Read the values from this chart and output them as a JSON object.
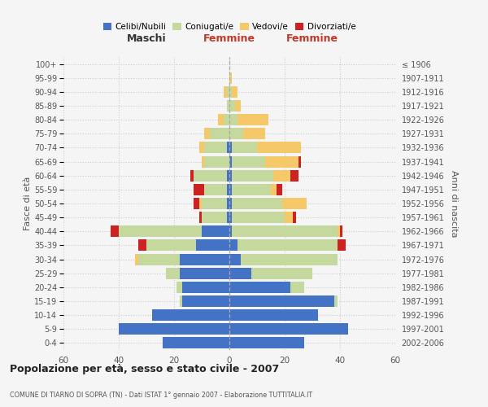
{
  "age_groups": [
    "0-4",
    "5-9",
    "10-14",
    "15-19",
    "20-24",
    "25-29",
    "30-34",
    "35-39",
    "40-44",
    "45-49",
    "50-54",
    "55-59",
    "60-64",
    "65-69",
    "70-74",
    "75-79",
    "80-84",
    "85-89",
    "90-94",
    "95-99",
    "100+"
  ],
  "birth_years": [
    "2002-2006",
    "1997-2001",
    "1992-1996",
    "1987-1991",
    "1982-1986",
    "1977-1981",
    "1972-1976",
    "1967-1971",
    "1962-1966",
    "1957-1961",
    "1952-1956",
    "1947-1951",
    "1942-1946",
    "1937-1941",
    "1932-1936",
    "1927-1931",
    "1922-1926",
    "1917-1921",
    "1912-1916",
    "1907-1911",
    "≤ 1906"
  ],
  "maschi": {
    "celibi": [
      24,
      40,
      28,
      17,
      17,
      18,
      18,
      12,
      10,
      1,
      1,
      1,
      1,
      0,
      1,
      0,
      0,
      0,
      0,
      0,
      0
    ],
    "coniugati": [
      0,
      0,
      0,
      1,
      2,
      5,
      15,
      18,
      30,
      9,
      9,
      8,
      12,
      9,
      8,
      7,
      2,
      1,
      1,
      0,
      0
    ],
    "vedovi": [
      0,
      0,
      0,
      0,
      0,
      0,
      1,
      0,
      0,
      0,
      1,
      0,
      0,
      1,
      2,
      2,
      2,
      0,
      1,
      0,
      0
    ],
    "divorziati": [
      0,
      0,
      0,
      0,
      0,
      0,
      0,
      3,
      3,
      1,
      2,
      4,
      1,
      0,
      0,
      0,
      0,
      0,
      0,
      0,
      0
    ]
  },
  "femmine": {
    "nubili": [
      27,
      43,
      32,
      38,
      22,
      8,
      4,
      3,
      1,
      1,
      1,
      1,
      1,
      1,
      1,
      0,
      0,
      0,
      0,
      0,
      0
    ],
    "coniugate": [
      0,
      0,
      0,
      1,
      5,
      22,
      35,
      36,
      38,
      19,
      18,
      14,
      15,
      12,
      9,
      5,
      3,
      2,
      1,
      0,
      0
    ],
    "vedove": [
      0,
      0,
      0,
      0,
      0,
      0,
      0,
      0,
      1,
      3,
      9,
      2,
      6,
      12,
      16,
      8,
      11,
      2,
      2,
      1,
      0
    ],
    "divorziate": [
      0,
      0,
      0,
      0,
      0,
      0,
      0,
      3,
      1,
      1,
      0,
      2,
      3,
      1,
      0,
      0,
      0,
      0,
      0,
      0,
      0
    ]
  },
  "colors": {
    "celibi": "#4472C4",
    "coniugati": "#c5d89d",
    "vedovi": "#f5c96a",
    "divorziati": "#cc2222"
  },
  "legend_labels": [
    "Celibi/Nubili",
    "Coniugati/e",
    "Vedovi/e",
    "Divorziati/e"
  ],
  "xlim": 60,
  "title": "Popolazione per età, sesso e stato civile - 2007",
  "subtitle": "COMUNE DI TIARNO DI SOPRA (TN) - Dati ISTAT 1° gennaio 2007 - Elaborazione TUTTITALIA.IT",
  "xlabel_left": "Maschi",
  "xlabel_right": "Femmine",
  "ylabel_left": "Fasce di età",
  "ylabel_right": "Anni di nascita",
  "bg_color": "#f5f5f5",
  "grid_color": "#cccccc"
}
